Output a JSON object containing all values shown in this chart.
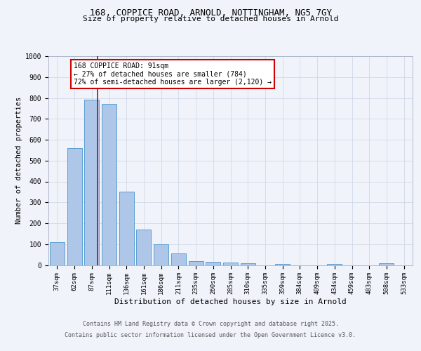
{
  "title_line1": "168, COPPICE ROAD, ARNOLD, NOTTINGHAM, NG5 7GY",
  "title_line2": "Size of property relative to detached houses in Arnold",
  "xlabel": "Distribution of detached houses by size in Arnold",
  "ylabel": "Number of detached properties",
  "bar_labels": [
    "37sqm",
    "62sqm",
    "87sqm",
    "111sqm",
    "136sqm",
    "161sqm",
    "186sqm",
    "211sqm",
    "235sqm",
    "260sqm",
    "285sqm",
    "310sqm",
    "335sqm",
    "359sqm",
    "384sqm",
    "409sqm",
    "434sqm",
    "459sqm",
    "483sqm",
    "508sqm",
    "533sqm"
  ],
  "bar_values": [
    110,
    560,
    790,
    770,
    350,
    170,
    100,
    55,
    20,
    15,
    12,
    8,
    0,
    5,
    0,
    0,
    5,
    0,
    0,
    8,
    0
  ],
  "bar_color": "#aec6e8",
  "bar_edge_color": "#5a9fd4",
  "grid_color": "#d0d8e8",
  "background_color": "#f0f4fa",
  "annotation_box_line1": "168 COPPICE ROAD: 91sqm",
  "annotation_box_line2": "← 27% of detached houses are smaller (784)",
  "annotation_box_line3": "72% of semi-detached houses are larger (2,120) →",
  "annotation_box_color": "#cc0000",
  "annotation_box_facecolor": "white",
  "vline_x": 2.35,
  "vline_color": "#cc0000",
  "ylim": [
    0,
    1000
  ],
  "yticks": [
    0,
    100,
    200,
    300,
    400,
    500,
    600,
    700,
    800,
    900,
    1000
  ],
  "footer_line1": "Contains HM Land Registry data © Crown copyright and database right 2025.",
  "footer_line2": "Contains public sector information licensed under the Open Government Licence v3.0."
}
